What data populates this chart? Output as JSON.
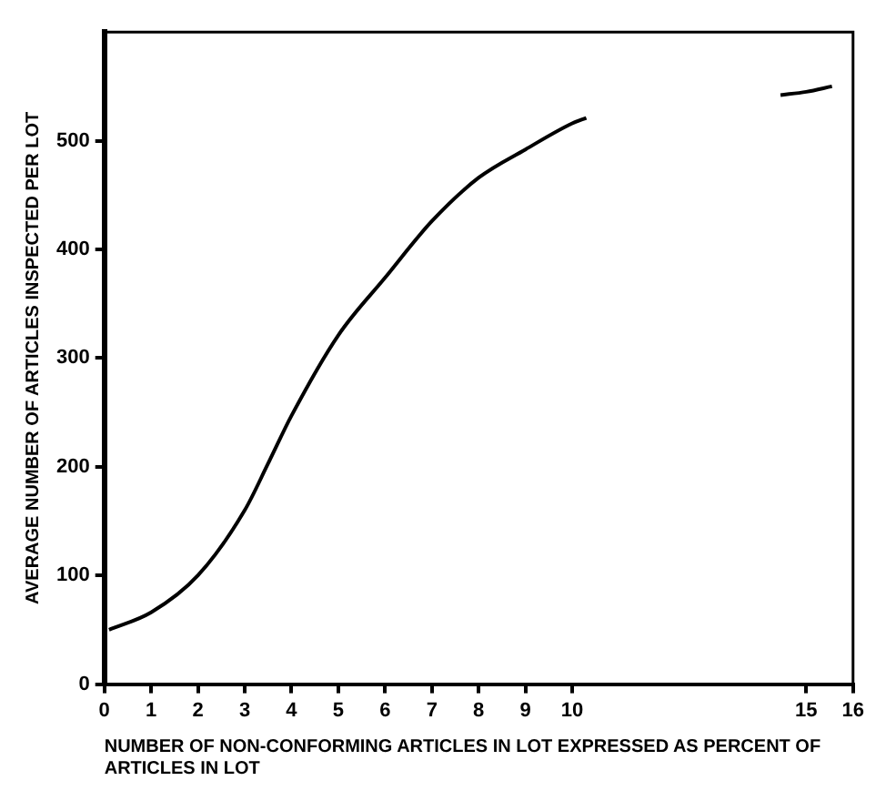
{
  "chart_data": {
    "type": "line",
    "xlabel": "NUMBER OF NON-CONFORMING ARTICLES IN LOT EXPRESSED AS PERCENT OF ARTICLES IN LOT",
    "ylabel": "AVERAGE NUMBER OF ARTICLES INSPECTED PER LOT",
    "series": [
      {
        "color": "#000000",
        "x": [
          0.1,
          1,
          2,
          3,
          3.5,
          4,
          5,
          6,
          7,
          8,
          9,
          10,
          10.3,
          12,
          14.45,
          15,
          15.55
        ],
        "values": [
          50,
          66,
          100,
          160,
          203,
          247,
          321,
          374,
          426,
          466,
          492,
          516,
          521,
          null,
          542,
          545,
          550
        ]
      }
    ],
    "xlim": [
      0,
      16
    ],
    "xticks": [
      0,
      1,
      2,
      3,
      4,
      5,
      6,
      7,
      8,
      9,
      10,
      15,
      16
    ],
    "ylim": [
      0,
      600
    ],
    "yticks": [
      0,
      100,
      200,
      300,
      400,
      500
    ],
    "grid": false,
    "legend": false,
    "marker": "none",
    "line_style": "solid"
  }
}
